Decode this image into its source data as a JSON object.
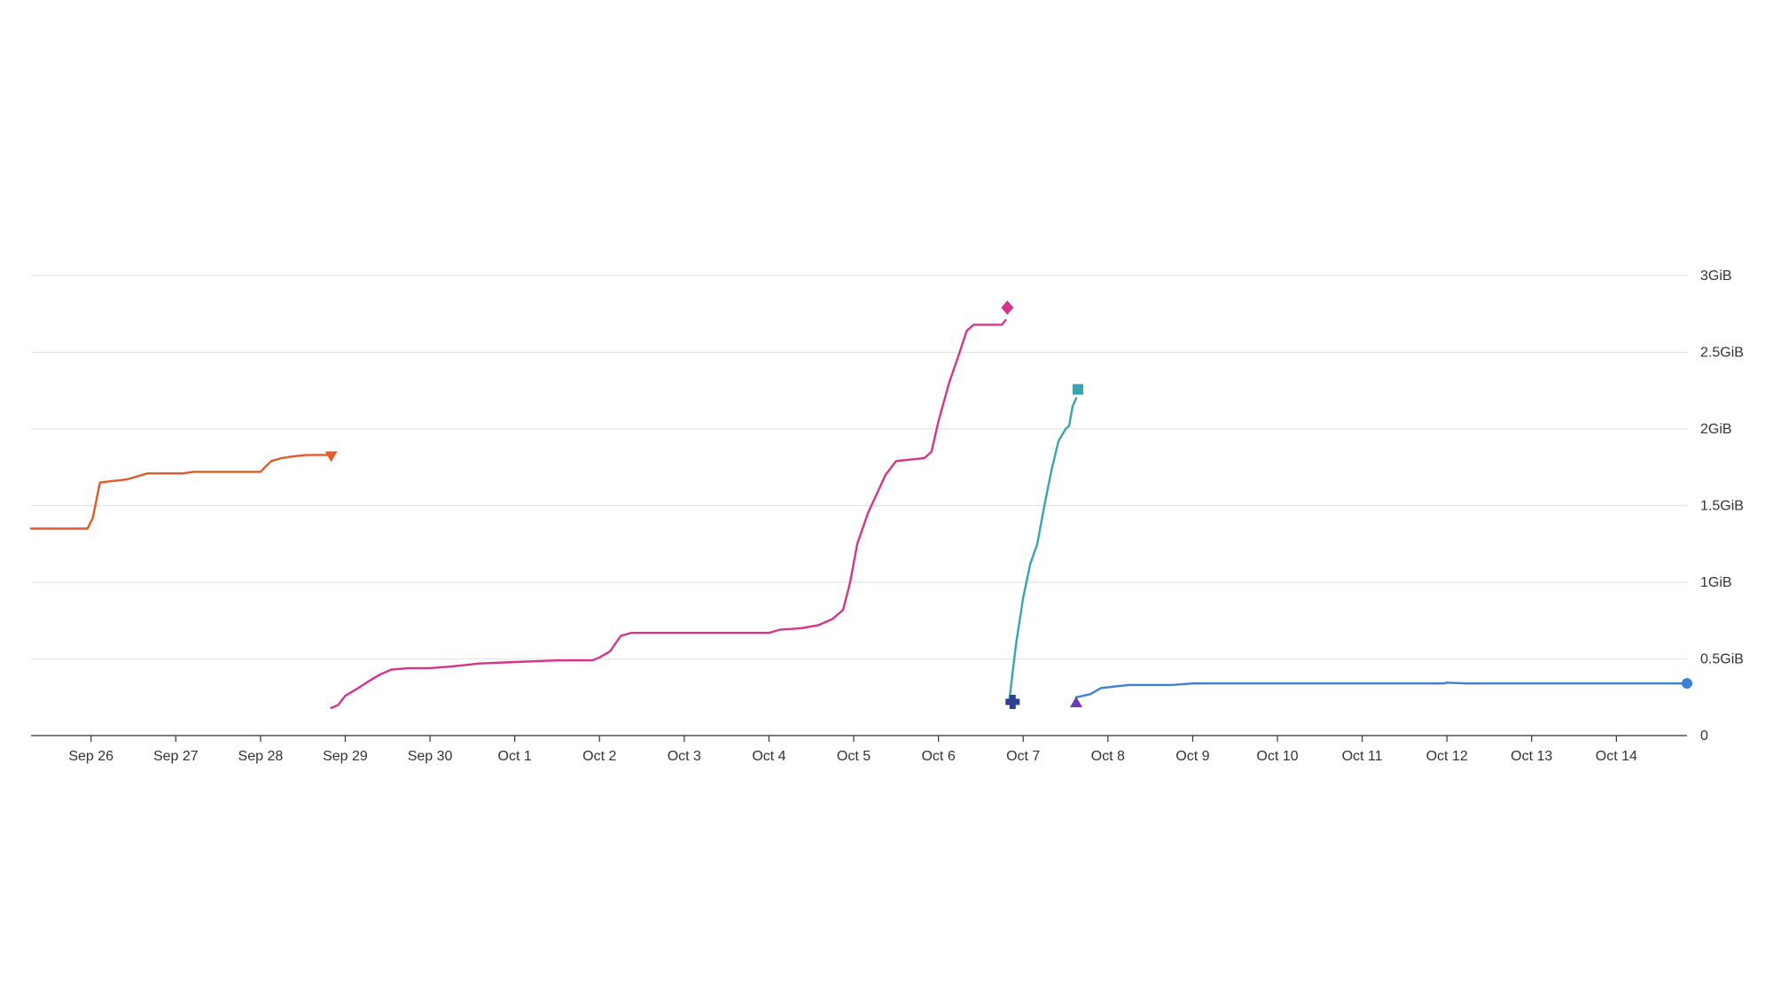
{
  "chart_data": {
    "type": "line",
    "title": "",
    "xlabel": "",
    "ylabel": "",
    "x_type": "date",
    "xlim": [
      "2023-09-25T07:00",
      "2023-10-14T20:00"
    ],
    "ylim_gib": [
      0,
      3
    ],
    "y_axis_position": "right",
    "grid": {
      "horizontal": true,
      "vertical": false
    },
    "legend": "none",
    "x_ticks": [
      {
        "date": "2023-09-26",
        "label": "Sep 26"
      },
      {
        "date": "2023-09-27",
        "label": "Sep 27"
      },
      {
        "date": "2023-09-28",
        "label": "Sep 28"
      },
      {
        "date": "2023-09-29",
        "label": "Sep 29"
      },
      {
        "date": "2023-09-30",
        "label": "Sep 30"
      },
      {
        "date": "2023-10-01",
        "label": "Oct 1"
      },
      {
        "date": "2023-10-02",
        "label": "Oct 2"
      },
      {
        "date": "2023-10-03",
        "label": "Oct 3"
      },
      {
        "date": "2023-10-04",
        "label": "Oct 4"
      },
      {
        "date": "2023-10-05",
        "label": "Oct 5"
      },
      {
        "date": "2023-10-06",
        "label": "Oct 6"
      },
      {
        "date": "2023-10-07",
        "label": "Oct 7"
      },
      {
        "date": "2023-10-08",
        "label": "Oct 8"
      },
      {
        "date": "2023-10-09",
        "label": "Oct 9"
      },
      {
        "date": "2023-10-10",
        "label": "Oct 10"
      },
      {
        "date": "2023-10-11",
        "label": "Oct 11"
      },
      {
        "date": "2023-10-12",
        "label": "Oct 12"
      },
      {
        "date": "2023-10-13",
        "label": "Oct 13"
      },
      {
        "date": "2023-10-14",
        "label": "Oct 14"
      }
    ],
    "y_ticks": [
      {
        "value": 0,
        "label": "0"
      },
      {
        "value": 0.5,
        "label": "0.5GiB"
      },
      {
        "value": 1,
        "label": "1GiB"
      },
      {
        "value": 1.5,
        "label": "1.5GiB"
      },
      {
        "value": 2,
        "label": "2GiB"
      },
      {
        "value": 2.5,
        "label": "2.5GiB"
      },
      {
        "value": 3,
        "label": "3GiB"
      }
    ],
    "series": [
      {
        "color": "#e05a2b",
        "end_marker": "triangle-down",
        "points": [
          [
            "2023-09-25T07:00",
            1.35
          ],
          [
            "2023-09-25T12:00",
            1.35
          ],
          [
            "2023-09-25T17:00",
            1.35
          ],
          [
            "2023-09-25T23:00",
            1.35
          ],
          [
            "2023-09-26T00:30",
            1.42
          ],
          [
            "2023-09-26T02:30",
            1.65
          ],
          [
            "2023-09-26T06:00",
            1.66
          ],
          [
            "2023-09-26T10:00",
            1.67
          ],
          [
            "2023-09-26T13:00",
            1.69
          ],
          [
            "2023-09-26T16:00",
            1.71
          ],
          [
            "2023-09-26T21:00",
            1.71
          ],
          [
            "2023-09-27T02:00",
            1.71
          ],
          [
            "2023-09-27T05:00",
            1.72
          ],
          [
            "2023-09-27T12:00",
            1.72
          ],
          [
            "2023-09-27T19:00",
            1.72
          ],
          [
            "2023-09-28T00:00",
            1.72
          ],
          [
            "2023-09-28T03:00",
            1.79
          ],
          [
            "2023-09-28T06:00",
            1.81
          ],
          [
            "2023-09-28T09:00",
            1.82
          ],
          [
            "2023-09-28T13:00",
            1.83
          ],
          [
            "2023-09-28T16:00",
            1.83
          ],
          [
            "2023-09-28T20:00",
            1.83
          ]
        ]
      },
      {
        "color": "#d6338a",
        "end_marker": "diamond",
        "points": [
          [
            "2023-09-28T20:00",
            0.18
          ],
          [
            "2023-09-28T22:00",
            0.2
          ],
          [
            "2023-09-29T00:00",
            0.26
          ],
          [
            "2023-09-29T03:00",
            0.3
          ],
          [
            "2023-09-29T07:00",
            0.36
          ],
          [
            "2023-09-29T10:00",
            0.4
          ],
          [
            "2023-09-29T13:00",
            0.43
          ],
          [
            "2023-09-29T18:00",
            0.44
          ],
          [
            "2023-09-30T00:00",
            0.44
          ],
          [
            "2023-09-30T06:00",
            0.45
          ],
          [
            "2023-09-30T14:00",
            0.47
          ],
          [
            "2023-10-01T00:00",
            0.48
          ],
          [
            "2023-10-01T12:00",
            0.49
          ],
          [
            "2023-10-01T22:00",
            0.49
          ],
          [
            "2023-10-02T00:00",
            0.51
          ],
          [
            "2023-10-02T03:00",
            0.55
          ],
          [
            "2023-10-02T06:00",
            0.65
          ],
          [
            "2023-10-02T09:00",
            0.67
          ],
          [
            "2023-10-02T18:00",
            0.67
          ],
          [
            "2023-10-03T12:00",
            0.67
          ],
          [
            "2023-10-04T00:00",
            0.67
          ],
          [
            "2023-10-04T03:00",
            0.69
          ],
          [
            "2023-10-04T09:00",
            0.7
          ],
          [
            "2023-10-04T14:00",
            0.72
          ],
          [
            "2023-10-04T18:00",
            0.76
          ],
          [
            "2023-10-04T21:00",
            0.82
          ],
          [
            "2023-10-04T23:00",
            1.0
          ],
          [
            "2023-10-05T01:00",
            1.25
          ],
          [
            "2023-10-05T04:00",
            1.45
          ],
          [
            "2023-10-05T07:00",
            1.6
          ],
          [
            "2023-10-05T09:00",
            1.7
          ],
          [
            "2023-10-05T12:00",
            1.79
          ],
          [
            "2023-10-05T16:00",
            1.8
          ],
          [
            "2023-10-05T20:00",
            1.81
          ],
          [
            "2023-10-05T22:00",
            1.85
          ],
          [
            "2023-10-06T00:00",
            2.05
          ],
          [
            "2023-10-06T03:00",
            2.3
          ],
          [
            "2023-10-06T06:00",
            2.5
          ],
          [
            "2023-10-06T08:00",
            2.64
          ],
          [
            "2023-10-06T10:00",
            2.68
          ],
          [
            "2023-10-06T14:00",
            2.68
          ],
          [
            "2023-10-06T18:00",
            2.68
          ],
          [
            "2023-10-06T19:00",
            2.71
          ]
        ]
      },
      {
        "color": "#3aa3b0",
        "end_marker": "square",
        "points": [
          [
            "2023-10-06T20:00",
            0.22
          ],
          [
            "2023-10-06T22:00",
            0.6
          ],
          [
            "2023-10-07T00:00",
            0.9
          ],
          [
            "2023-10-07T02:00",
            1.12
          ],
          [
            "2023-10-07T04:00",
            1.25
          ],
          [
            "2023-10-07T06:00",
            1.5
          ],
          [
            "2023-10-07T08:00",
            1.73
          ],
          [
            "2023-10-07T10:00",
            1.92
          ],
          [
            "2023-10-07T12:00",
            2.0
          ],
          [
            "2023-10-07T13:00",
            2.02
          ],
          [
            "2023-10-07T14:00",
            2.15
          ],
          [
            "2023-10-07T15:00",
            2.2
          ]
        ]
      },
      {
        "color": "#3f7fd6",
        "end_marker": "circle",
        "points": [
          [
            "2023-10-07T15:00",
            0.25
          ],
          [
            "2023-10-07T19:00",
            0.27
          ],
          [
            "2023-10-07T22:00",
            0.31
          ],
          [
            "2023-10-08T02:00",
            0.32
          ],
          [
            "2023-10-08T06:00",
            0.33
          ],
          [
            "2023-10-08T12:00",
            0.33
          ],
          [
            "2023-10-08T18:00",
            0.33
          ],
          [
            "2023-10-09T00:00",
            0.34
          ],
          [
            "2023-10-09T06:00",
            0.34
          ],
          [
            "2023-10-09T18:00",
            0.34
          ],
          [
            "2023-10-10T12:00",
            0.34
          ],
          [
            "2023-10-11T12:00",
            0.34
          ],
          [
            "2023-10-11T23:00",
            0.34
          ],
          [
            "2023-10-12T00:00",
            0.345
          ],
          [
            "2023-10-12T06:00",
            0.34
          ],
          [
            "2023-10-13T00:00",
            0.34
          ],
          [
            "2023-10-14T00:00",
            0.34
          ],
          [
            "2023-10-14T20:00",
            0.34
          ]
        ]
      }
    ],
    "series_start_markers": [
      {
        "color": "#2d3f8f",
        "shape": "cross",
        "x": "2023-10-06T21:00",
        "y": 0.22
      },
      {
        "color": "#6a3fb5",
        "shape": "triangle-up",
        "x": "2023-10-07T15:00",
        "y": 0.22
      }
    ]
  }
}
